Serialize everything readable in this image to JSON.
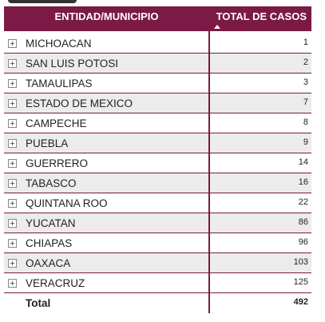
{
  "table": {
    "columns": [
      "ENTIDAD/MUNICIPIO",
      "TOTAL DE CASOS"
    ],
    "rows": [
      [
        "MICHOACAN",
        1
      ],
      [
        "SAN LUIS POTOSI",
        2
      ],
      [
        "TAMAULIPAS",
        3
      ],
      [
        "ESTADO DE MEXICO",
        7
      ],
      [
        "CAMPECHE",
        8
      ],
      [
        "PUEBLA",
        9
      ],
      [
        "GUERRERO",
        14
      ],
      [
        "TABASCO",
        16
      ],
      [
        "QUINTANA ROO",
        22
      ],
      [
        "YUCATAN",
        86
      ],
      [
        "CHIAPAS",
        96
      ],
      [
        "OAXACA",
        103
      ],
      [
        "VERACRUZ",
        125
      ]
    ],
    "total": [
      "Total",
      492
    ]
  }
}
